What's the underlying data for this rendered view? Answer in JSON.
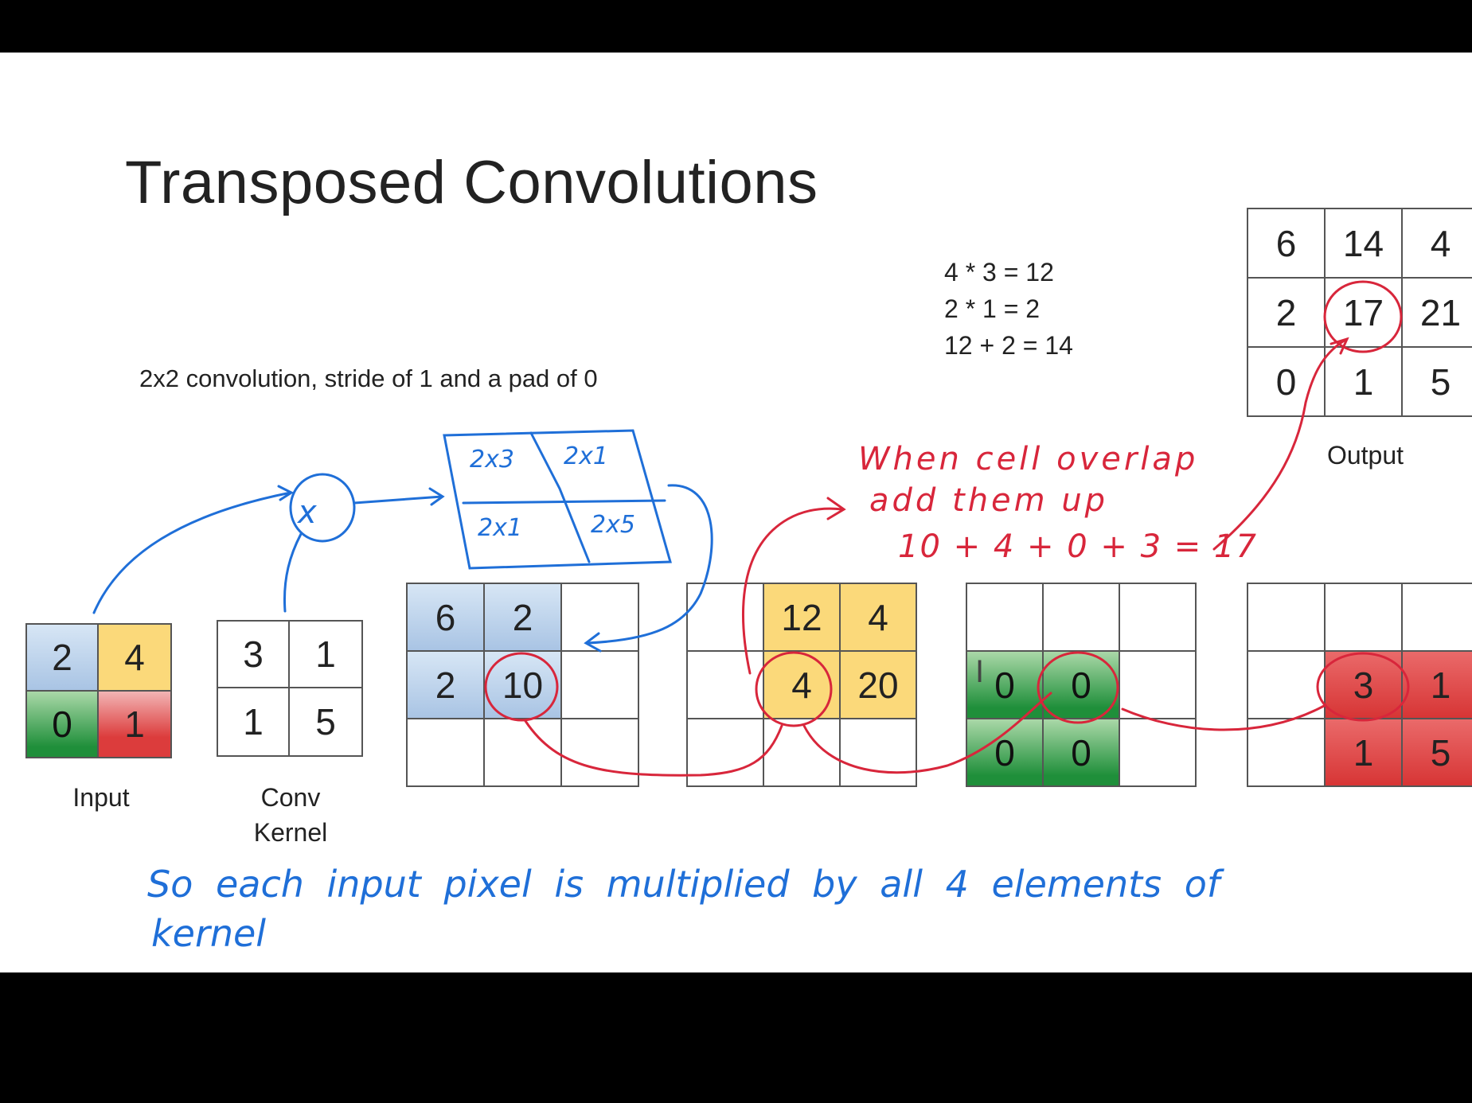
{
  "slide": {
    "title": "Transposed Convolutions",
    "subtitle": "2x2 convolution, stride of 1 and a pad of 0",
    "calc_lines": [
      "4 * 3 = 12",
      "2 * 1 = 2",
      "12 + 2 = 14"
    ]
  },
  "input": {
    "label": "Input",
    "values": [
      "2",
      "4",
      "0",
      "1"
    ]
  },
  "kernel": {
    "label_line1": "Conv",
    "label_line2": "Kernel",
    "values": [
      "3",
      "1",
      "1",
      "5"
    ]
  },
  "multiply_symbol": "x",
  "products_box": [
    "2x3",
    "2x1",
    "2x1",
    "2x5"
  ],
  "partial_1": [
    "6",
    "2",
    "",
    "2",
    "10",
    "",
    "",
    "",
    ""
  ],
  "partial_2": [
    "",
    "12",
    "4",
    "",
    "4",
    "20",
    "",
    "",
    ""
  ],
  "partial_3": [
    "",
    "",
    "",
    "0",
    "0",
    "",
    "0",
    "0",
    ""
  ],
  "partial_4": [
    "",
    "",
    "",
    "",
    "3",
    "1",
    "",
    "1",
    "5"
  ],
  "output": {
    "label": "Output",
    "values": [
      "6",
      "14",
      "4",
      "2",
      "17",
      "21",
      "0",
      "1",
      "5"
    ]
  },
  "notes": {
    "red_line1": "When cell overlap",
    "red_line2": "add them up",
    "red_line3": "10 + 4 + 0 + 3 = 17",
    "blue_line1": "So each input pixel is multiplied by all 4 elements of",
    "blue_line2": "kernel",
    "cursor": "I"
  },
  "colors": {
    "blue_ink": "#1f6fd8",
    "red_ink": "#d8263b",
    "yellow": "#fbd97a",
    "green": "#1f8f3a",
    "red": "#dc3c3c"
  }
}
